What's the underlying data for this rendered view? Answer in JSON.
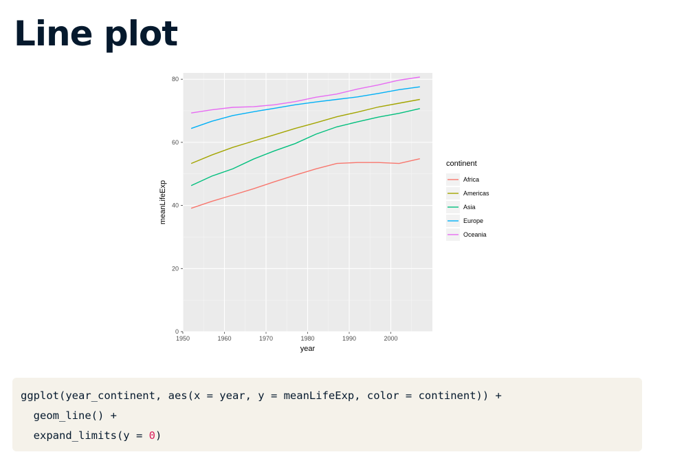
{
  "slide": {
    "title": "Line plot"
  },
  "chart_data": {
    "type": "line",
    "xlabel": "year",
    "ylabel": "meanLifeExp",
    "xlim": [
      1950,
      2010
    ],
    "ylim": [
      0,
      82
    ],
    "x_ticks": [
      1950,
      1960,
      1970,
      1980,
      1990,
      2000
    ],
    "y_ticks": [
      0,
      20,
      40,
      60,
      80
    ],
    "grid": true,
    "legend_title": "continent",
    "legend_position": "right",
    "x": [
      1952,
      1957,
      1962,
      1967,
      1972,
      1977,
      1982,
      1987,
      1992,
      1997,
      2002,
      2007
    ],
    "series": [
      {
        "name": "Africa",
        "color": "#F8766D",
        "values": [
          39.1,
          41.3,
          43.3,
          45.3,
          47.5,
          49.6,
          51.6,
          53.3,
          53.6,
          53.6,
          53.3,
          54.8
        ]
      },
      {
        "name": "Americas",
        "color": "#A3A500",
        "values": [
          53.3,
          56.0,
          58.4,
          60.4,
          62.4,
          64.4,
          66.2,
          68.1,
          69.6,
          71.2,
          72.4,
          73.6
        ]
      },
      {
        "name": "Asia",
        "color": "#00BF7D",
        "values": [
          46.3,
          49.3,
          51.6,
          54.7,
          57.3,
          59.6,
          62.6,
          64.9,
          66.5,
          68.0,
          69.2,
          70.7
        ]
      },
      {
        "name": "Europe",
        "color": "#00B0F6",
        "values": [
          64.4,
          66.7,
          68.5,
          69.7,
          70.8,
          71.9,
          72.8,
          73.6,
          74.4,
          75.5,
          76.7,
          77.6
        ]
      },
      {
        "name": "Oceania",
        "color": "#E76BF3",
        "values": [
          69.3,
          70.3,
          71.1,
          71.3,
          71.9,
          72.9,
          74.3,
          75.3,
          76.9,
          78.2,
          79.7,
          80.7
        ]
      }
    ]
  },
  "code": {
    "line1": "ggplot(year_continent, aes(x = year, y = meanLifeExp, color = continent)) +",
    "line2": "  geom_line() +",
    "line3_pre": "  expand_limits(y = ",
    "line3_num": "0",
    "line3_post": ")"
  }
}
